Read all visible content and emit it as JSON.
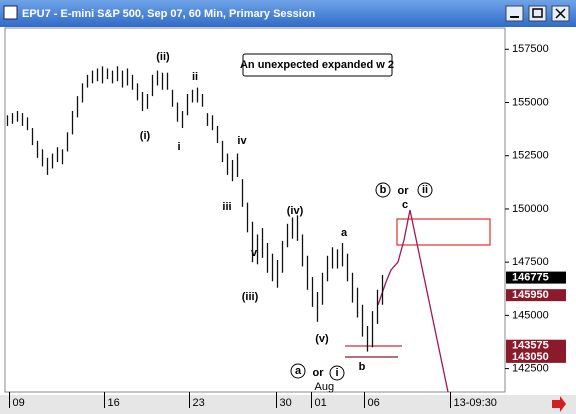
{
  "window": {
    "title": "EPU7 - E-mini S&P 500, Sep 07, 60 Min, Primary Session"
  },
  "chart_data": {
    "type": "ohlc",
    "color": "#111111",
    "x": [
      0,
      1,
      2,
      3,
      4,
      5,
      6,
      7,
      8,
      9,
      10,
      11,
      12,
      13,
      14,
      15,
      16,
      17,
      18,
      19,
      20,
      21,
      22,
      23,
      24,
      25,
      26,
      27,
      28,
      29,
      30,
      31,
      32,
      33,
      34,
      35,
      36,
      37,
      38,
      39,
      40,
      41,
      42,
      43,
      44,
      45,
      46,
      47,
      48,
      49,
      50,
      51,
      52,
      53,
      54,
      55,
      56,
      57,
      58,
      59,
      60,
      61,
      62,
      63,
      64,
      65,
      66,
      67,
      68,
      69,
      70,
      71,
      72,
      73,
      74,
      75
    ],
    "high": [
      154400,
      154500,
      154600,
      154500,
      154300,
      153800,
      153200,
      152800,
      152400,
      152600,
      152900,
      152800,
      153600,
      154600,
      155300,
      155900,
      156300,
      156500,
      156600,
      156700,
      156600,
      156500,
      156700,
      156500,
      156600,
      156300,
      155900,
      155500,
      155400,
      156300,
      156500,
      156400,
      156400,
      155600,
      155000,
      154600,
      155400,
      155600,
      155700,
      155400,
      154500,
      154400,
      153900,
      153200,
      152600,
      152300,
      152600,
      151400,
      150300,
      149400,
      148800,
      149100,
      148400,
      147900,
      147600,
      148500,
      149300,
      149600,
      149700,
      148800,
      147800,
      146800,
      146100,
      147000,
      147800,
      148200,
      148100,
      148400,
      147900,
      147000,
      146300,
      145500,
      144500,
      145200,
      146200,
      146900
    ],
    "low": [
      153900,
      154000,
      154100,
      153900,
      153700,
      153000,
      152400,
      152000,
      151600,
      151900,
      152200,
      152100,
      152700,
      153500,
      154300,
      155000,
      155700,
      155900,
      156000,
      155900,
      156100,
      155900,
      156000,
      155700,
      155800,
      155600,
      155100,
      154600,
      154700,
      155300,
      155800,
      155600,
      155600,
      154800,
      154100,
      153800,
      154400,
      155000,
      155000,
      154800,
      153900,
      153700,
      153100,
      152200,
      151600,
      151300,
      151500,
      150100,
      148900,
      147500,
      147400,
      147700,
      147000,
      146600,
      146300,
      147000,
      148200,
      148600,
      148500,
      147300,
      146200,
      145400,
      144700,
      145500,
      146600,
      147200,
      147200,
      147300,
      146600,
      145600,
      144900,
      144000,
      143300,
      143500,
      144600,
      145500
    ],
    "xlim": [
      -0.5,
      99.5
    ],
    "xticks": [
      {
        "value": 0.4,
        "label": "09"
      },
      {
        "value": 19.4,
        "label": "16"
      },
      {
        "value": 36.4,
        "label": "23"
      },
      {
        "value": 53.8,
        "label": "30"
      },
      {
        "value": 60.8,
        "label": "01"
      },
      {
        "value": 71.4,
        "label": "06"
      },
      {
        "value": 88.6,
        "label": "13-09:30"
      }
    ],
    "x_sublabels": [
      {
        "value": 60.8,
        "label": "Aug"
      }
    ],
    "ylim": [
      141400,
      158500
    ],
    "yticks": [
      142500,
      145000,
      147500,
      150000,
      152500,
      155000,
      157500
    ],
    "price_tags": [
      146775,
      145950,
      143575,
      143050
    ],
    "price_tag_colors": [
      "#000000",
      "#8b1a2b",
      "#8b1a2b",
      "#8b1a2b"
    ],
    "note": "An unexpected expanded w 2",
    "annotations": [
      "(ii)",
      "ii",
      "(i)",
      "i",
      "iv",
      "iii",
      "(iv)",
      "a",
      "v",
      "(iii)",
      "(v)",
      "b",
      "c",
      "b",
      "or",
      "ii",
      "a",
      "or",
      "i"
    ]
  }
}
